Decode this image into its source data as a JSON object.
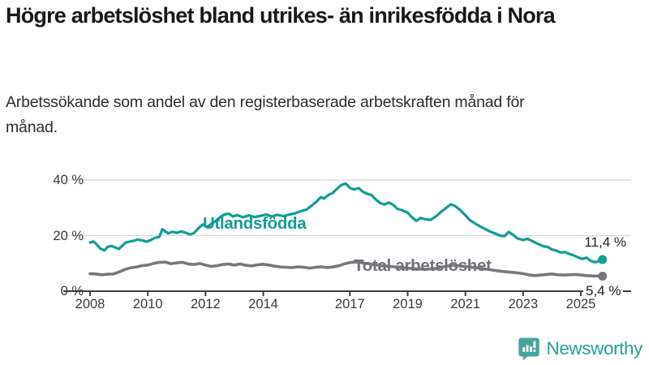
{
  "header": {
    "title": "Högre arbetslöshet bland utrikes- än inrikesfödda i Nora",
    "subtitle": "Arbetssökande som andel av den registerbaserade arbetskraften månad för månad."
  },
  "chart_data": {
    "type": "line",
    "unit": "%",
    "grid": "horizontal-only",
    "legend_position": "inline-labels",
    "xlim": [
      2007.1,
      2026.7
    ],
    "ylim": [
      0,
      44
    ],
    "x_ticks": [
      2008,
      2010,
      2012,
      2014,
      2017,
      2019,
      2021,
      2023,
      2025
    ],
    "y_ticks": [
      0,
      20,
      40
    ],
    "y_tick_labels": [
      "0 %",
      "20 %",
      "40 %"
    ],
    "axis_color": "#3f3f3f",
    "gridline_color": "#d8d8d8",
    "series": [
      {
        "name": "Utlandsfödda",
        "color": "#119e92",
        "end_label": "11,4 %",
        "end_value": 11.4,
        "points": [
          [
            2008.0,
            17.5
          ],
          [
            2008.1,
            17.9
          ],
          [
            2008.2,
            17.2
          ],
          [
            2008.35,
            15.4
          ],
          [
            2008.5,
            14.7
          ],
          [
            2008.6,
            15.9
          ],
          [
            2008.75,
            16.3
          ],
          [
            2008.9,
            15.6
          ],
          [
            2009.0,
            15.2
          ],
          [
            2009.1,
            16.2
          ],
          [
            2009.25,
            17.6
          ],
          [
            2009.4,
            17.9
          ],
          [
            2009.5,
            18.1
          ],
          [
            2009.65,
            18.6
          ],
          [
            2009.8,
            18.3
          ],
          [
            2009.95,
            17.8
          ],
          [
            2010.1,
            18.4
          ],
          [
            2010.25,
            19.2
          ],
          [
            2010.4,
            19.5
          ],
          [
            2010.5,
            22.3
          ],
          [
            2010.6,
            21.6
          ],
          [
            2010.7,
            20.8
          ],
          [
            2010.85,
            21.4
          ],
          [
            2011.0,
            21.0
          ],
          [
            2011.15,
            21.5
          ],
          [
            2011.3,
            21.1
          ],
          [
            2011.45,
            20.4
          ],
          [
            2011.6,
            20.9
          ],
          [
            2011.75,
            22.6
          ],
          [
            2011.9,
            24.0
          ],
          [
            2012.05,
            23.1
          ],
          [
            2012.2,
            24.3
          ],
          [
            2012.35,
            25.2
          ],
          [
            2012.5,
            26.6
          ],
          [
            2012.65,
            27.6
          ],
          [
            2012.8,
            27.9
          ],
          [
            2012.95,
            26.9
          ],
          [
            2013.1,
            27.4
          ],
          [
            2013.3,
            26.6
          ],
          [
            2013.5,
            27.3
          ],
          [
            2013.7,
            26.7
          ],
          [
            2013.9,
            27.1
          ],
          [
            2014.1,
            27.6
          ],
          [
            2014.3,
            26.9
          ],
          [
            2014.5,
            27.5
          ],
          [
            2014.7,
            27.0
          ],
          [
            2014.9,
            27.6
          ],
          [
            2015.1,
            28.0
          ],
          [
            2015.3,
            28.8
          ],
          [
            2015.5,
            29.4
          ],
          [
            2015.7,
            31.0
          ],
          [
            2015.85,
            32.3
          ],
          [
            2016.0,
            33.9
          ],
          [
            2016.1,
            33.3
          ],
          [
            2016.25,
            34.6
          ],
          [
            2016.4,
            35.3
          ],
          [
            2016.55,
            36.8
          ],
          [
            2016.7,
            38.2
          ],
          [
            2016.85,
            38.8
          ],
          [
            2017.0,
            37.2
          ],
          [
            2017.15,
            36.6
          ],
          [
            2017.3,
            37.1
          ],
          [
            2017.45,
            35.8
          ],
          [
            2017.6,
            35.1
          ],
          [
            2017.75,
            34.6
          ],
          [
            2017.9,
            33.0
          ],
          [
            2018.05,
            31.7
          ],
          [
            2018.2,
            31.2
          ],
          [
            2018.35,
            31.9
          ],
          [
            2018.5,
            31.1
          ],
          [
            2018.65,
            29.6
          ],
          [
            2018.8,
            29.2
          ],
          [
            2019.0,
            28.3
          ],
          [
            2019.15,
            26.6
          ],
          [
            2019.3,
            25.3
          ],
          [
            2019.45,
            26.4
          ],
          [
            2019.6,
            25.9
          ],
          [
            2019.8,
            25.7
          ],
          [
            2020.0,
            27.1
          ],
          [
            2020.2,
            28.9
          ],
          [
            2020.35,
            30.1
          ],
          [
            2020.5,
            31.3
          ],
          [
            2020.65,
            30.6
          ],
          [
            2020.8,
            29.4
          ],
          [
            2021.0,
            27.4
          ],
          [
            2021.15,
            25.6
          ],
          [
            2021.3,
            24.6
          ],
          [
            2021.5,
            23.4
          ],
          [
            2021.7,
            22.3
          ],
          [
            2021.85,
            21.5
          ],
          [
            2022.0,
            20.9
          ],
          [
            2022.2,
            20.0
          ],
          [
            2022.35,
            19.8
          ],
          [
            2022.5,
            21.3
          ],
          [
            2022.65,
            20.3
          ],
          [
            2022.8,
            19.0
          ],
          [
            2023.0,
            18.4
          ],
          [
            2023.15,
            18.9
          ],
          [
            2023.3,
            18.1
          ],
          [
            2023.5,
            17.1
          ],
          [
            2023.7,
            16.2
          ],
          [
            2023.85,
            15.9
          ],
          [
            2024.0,
            15.0
          ],
          [
            2024.15,
            14.6
          ],
          [
            2024.3,
            13.9
          ],
          [
            2024.45,
            14.1
          ],
          [
            2024.6,
            13.4
          ],
          [
            2024.75,
            12.9
          ],
          [
            2024.9,
            12.2
          ],
          [
            2025.05,
            11.6
          ],
          [
            2025.2,
            12.1
          ],
          [
            2025.35,
            10.9
          ],
          [
            2025.5,
            10.4
          ],
          [
            2025.65,
            10.9
          ],
          [
            2025.75,
            11.4
          ]
        ]
      },
      {
        "name": "Total arbetslöshet",
        "color": "#77777d",
        "end_label": "5,4 %",
        "end_value": 5.4,
        "points": [
          [
            2008.0,
            6.3
          ],
          [
            2008.2,
            6.2
          ],
          [
            2008.4,
            5.9
          ],
          [
            2008.6,
            6.1
          ],
          [
            2008.8,
            6.2
          ],
          [
            2009.0,
            6.9
          ],
          [
            2009.2,
            7.8
          ],
          [
            2009.4,
            8.4
          ],
          [
            2009.6,
            8.7
          ],
          [
            2009.8,
            9.2
          ],
          [
            2010.0,
            9.4
          ],
          [
            2010.2,
            10.0
          ],
          [
            2010.4,
            10.4
          ],
          [
            2010.6,
            10.5
          ],
          [
            2010.8,
            9.9
          ],
          [
            2011.0,
            10.2
          ],
          [
            2011.2,
            10.4
          ],
          [
            2011.4,
            9.8
          ],
          [
            2011.6,
            9.6
          ],
          [
            2011.8,
            10.0
          ],
          [
            2012.0,
            9.4
          ],
          [
            2012.2,
            8.9
          ],
          [
            2012.4,
            9.2
          ],
          [
            2012.6,
            9.6
          ],
          [
            2012.8,
            9.8
          ],
          [
            2013.0,
            9.4
          ],
          [
            2013.2,
            9.8
          ],
          [
            2013.4,
            9.3
          ],
          [
            2013.6,
            9.1
          ],
          [
            2013.8,
            9.5
          ],
          [
            2014.0,
            9.7
          ],
          [
            2014.2,
            9.4
          ],
          [
            2014.4,
            9.0
          ],
          [
            2014.6,
            8.7
          ],
          [
            2014.8,
            8.6
          ],
          [
            2015.0,
            8.5
          ],
          [
            2015.2,
            8.8
          ],
          [
            2015.4,
            8.6
          ],
          [
            2015.6,
            8.3
          ],
          [
            2015.8,
            8.6
          ],
          [
            2016.0,
            8.8
          ],
          [
            2016.2,
            8.5
          ],
          [
            2016.4,
            8.7
          ],
          [
            2016.6,
            9.1
          ],
          [
            2016.8,
            9.8
          ],
          [
            2017.0,
            10.3
          ],
          [
            2017.2,
            10.5
          ],
          [
            2017.5,
            10.1
          ],
          [
            2017.8,
            9.6
          ],
          [
            2018.1,
            9.2
          ],
          [
            2018.4,
            8.9
          ],
          [
            2018.7,
            8.6
          ],
          [
            2019.0,
            8.3
          ],
          [
            2019.3,
            8.0
          ],
          [
            2019.6,
            7.9
          ],
          [
            2019.9,
            8.1
          ],
          [
            2020.2,
            8.7
          ],
          [
            2020.5,
            9.3
          ],
          [
            2020.8,
            9.1
          ],
          [
            2021.1,
            8.8
          ],
          [
            2021.4,
            8.4
          ],
          [
            2021.7,
            8.0
          ],
          [
            2022.0,
            7.5
          ],
          [
            2022.3,
            7.1
          ],
          [
            2022.6,
            6.8
          ],
          [
            2022.8,
            6.6
          ],
          [
            2023.0,
            6.3
          ],
          [
            2023.2,
            5.9
          ],
          [
            2023.4,
            5.6
          ],
          [
            2023.6,
            5.8
          ],
          [
            2023.8,
            6.0
          ],
          [
            2024.0,
            6.2
          ],
          [
            2024.2,
            5.9
          ],
          [
            2024.4,
            5.8
          ],
          [
            2024.6,
            5.9
          ],
          [
            2024.8,
            6.0
          ],
          [
            2025.0,
            5.8
          ],
          [
            2025.2,
            5.6
          ],
          [
            2025.4,
            5.5
          ],
          [
            2025.6,
            5.45
          ],
          [
            2025.75,
            5.4
          ]
        ]
      }
    ]
  },
  "footer": {
    "brand": "Newsworthy",
    "logo_icon": "newsworthy-chart-bubble-icon",
    "brand_color": "#27a096",
    "icon_color": "#45a59d"
  }
}
